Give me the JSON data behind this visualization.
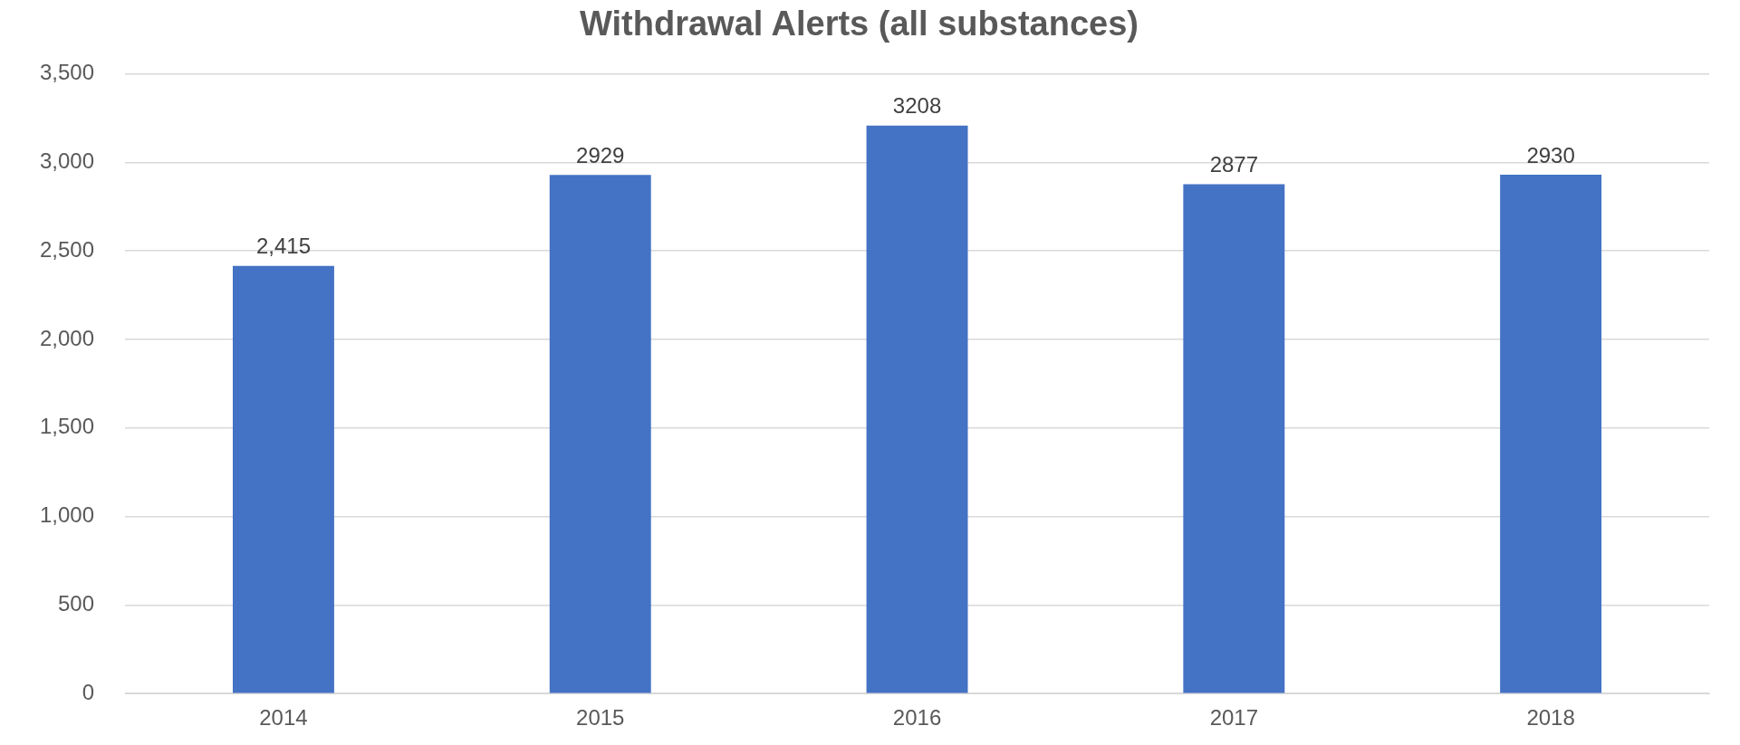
{
  "chart_data": {
    "type": "bar",
    "title": "Withdrawal Alerts (all substances)",
    "categories": [
      "2014",
      "2015",
      "2016",
      "2017",
      "2018"
    ],
    "values": [
      2415,
      2929,
      3208,
      2877,
      2930
    ],
    "value_labels": [
      "2,415",
      "2929",
      "3208",
      "2877",
      "2930"
    ],
    "color": "#4472c4",
    "ylim": [
      0,
      3500
    ],
    "yticks": [
      0,
      500,
      {
        "value": 1000,
        "label": "1,000"
      },
      {
        "value": 1500,
        "label": "1,500"
      },
      {
        "value": 2000,
        "label": "2,000"
      },
      {
        "value": 2500,
        "label": "2,500"
      },
      {
        "value": 3000,
        "label": "3,000"
      },
      {
        "value": 3500,
        "label": "3,500"
      }
    ],
    "grid": "y",
    "legend": false
  }
}
